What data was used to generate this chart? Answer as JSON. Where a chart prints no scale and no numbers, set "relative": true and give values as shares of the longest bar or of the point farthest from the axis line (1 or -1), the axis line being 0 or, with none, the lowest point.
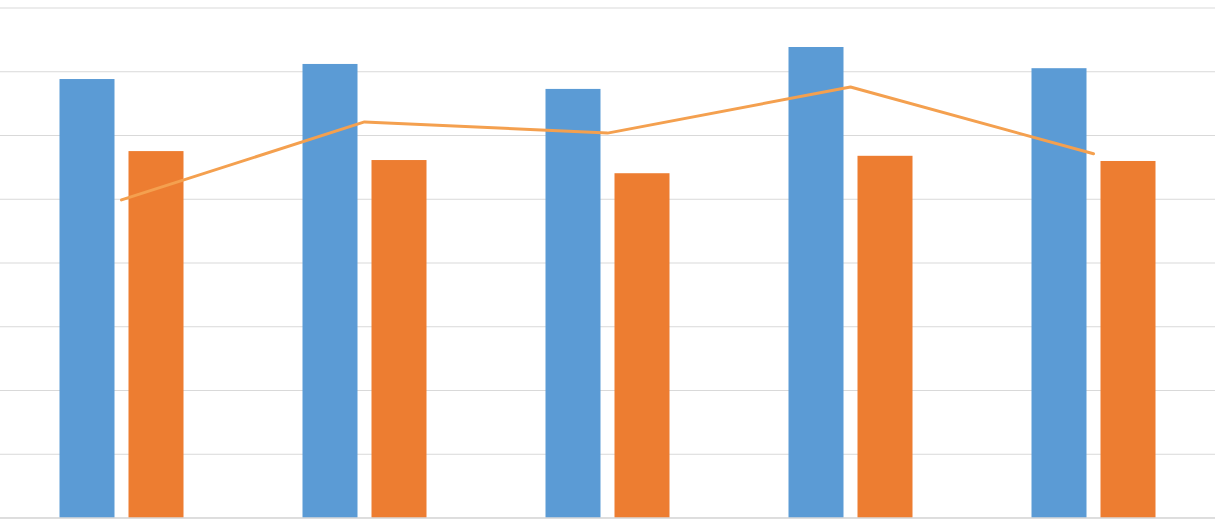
{
  "chart_data": [
    {
      "type": "bar",
      "relative": true,
      "grid": "y",
      "categories": [
        null,
        null,
        null,
        null,
        null
      ],
      "series": [
        {
          "color": "#5b9bd5",
          "values": [
            0.932,
            0.964,
            0.911,
            1,
            0.955
          ]
        },
        {
          "color": "#ed7d31",
          "values": [
            0.779,
            0.76,
            0.732,
            0.769,
            0.758
          ]
        }
      ]
    },
    {
      "type": "line",
      "relative": true,
      "categories": [
        null,
        null,
        null,
        null,
        null
      ],
      "series": [
        {
          "color": "#f4a04f",
          "values": [
            0.738,
            0.919,
            0.893,
            1,
            0.845
          ]
        }
      ]
    }
  ]
}
